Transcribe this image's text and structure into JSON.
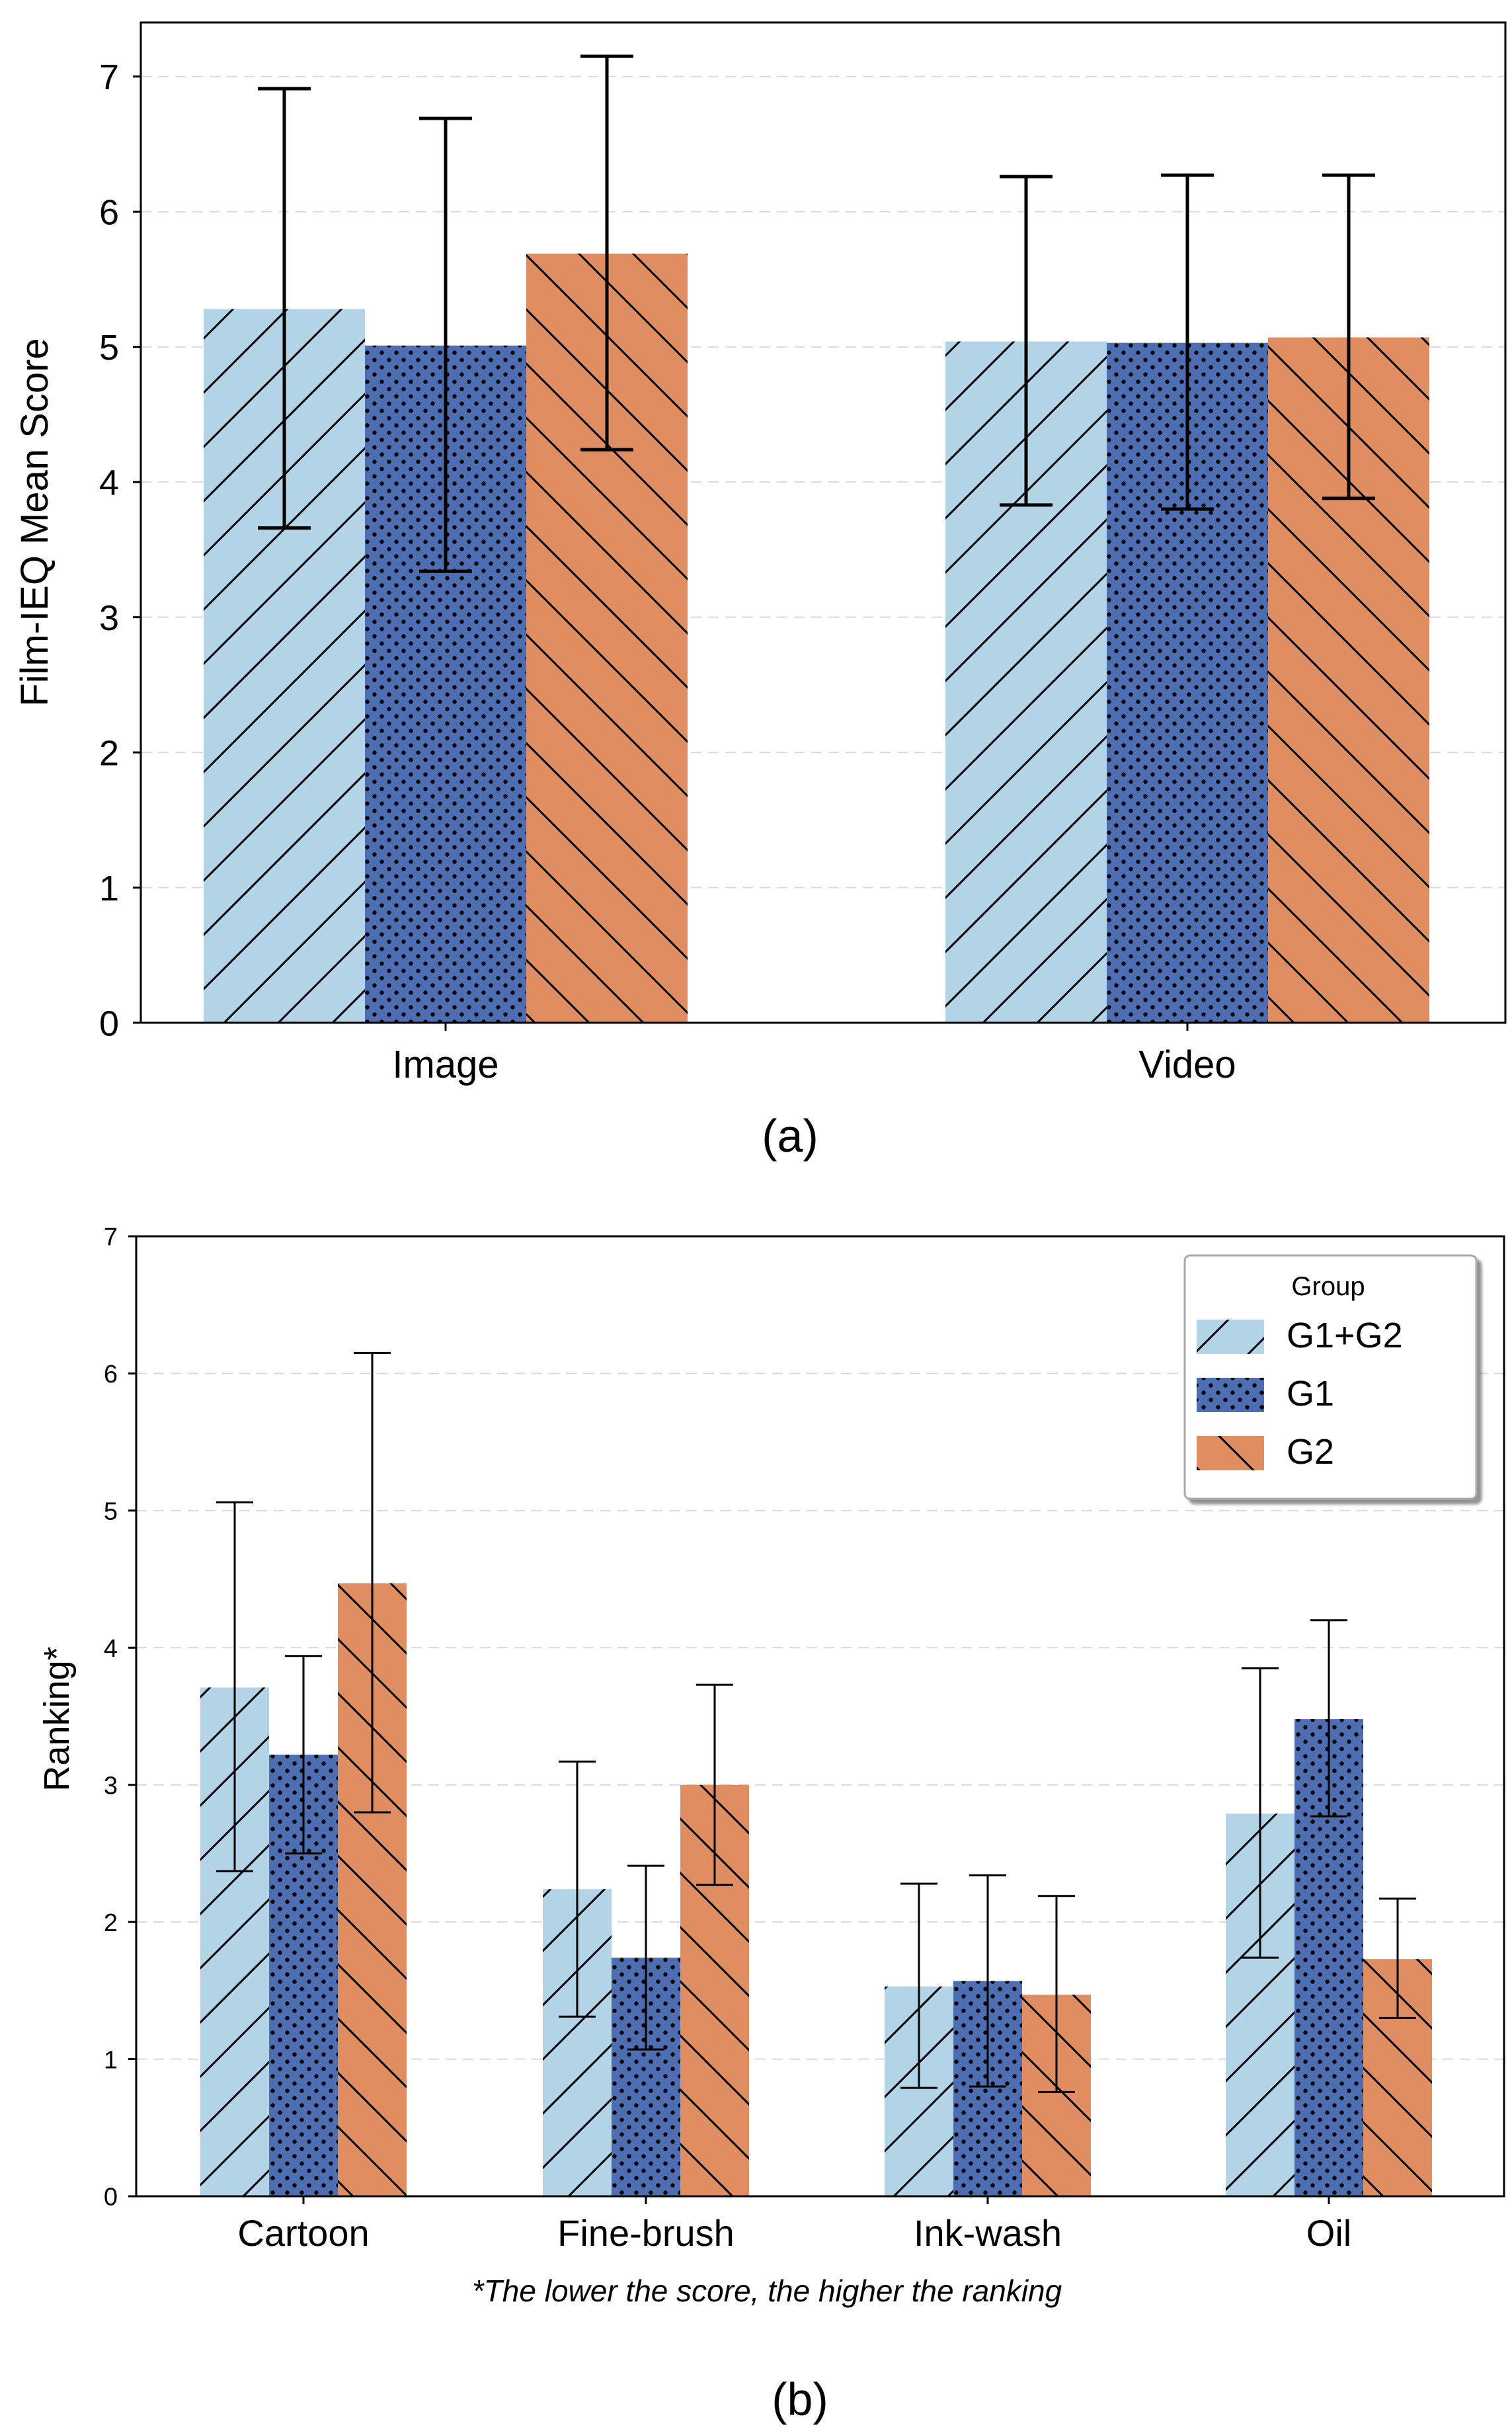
{
  "colors": {
    "g1g2": "#b3d3e6",
    "g1": "#4e6eb3",
    "g2": "#e08d61",
    "grid": "#d9d9d9",
    "axis": "#000000"
  },
  "chart_data": [
    {
      "id": "a",
      "type": "bar",
      "caption": "(a)",
      "title": "",
      "xlabel": "",
      "ylabel": "Film-IEQ Mean Score",
      "ylim": [
        0,
        7.4
      ],
      "yticks": [
        0,
        1,
        2,
        3,
        4,
        5,
        6,
        7
      ],
      "grid": true,
      "categories": [
        "Image",
        "Video"
      ],
      "series": [
        {
          "name": "G1+G2",
          "pattern": "diag-up",
          "values": [
            5.28,
            5.04
          ],
          "err_low": [
            3.66,
            3.83
          ],
          "err_high": [
            6.91,
            6.26
          ]
        },
        {
          "name": "G1",
          "pattern": "dots",
          "values": [
            5.01,
            5.03
          ],
          "err_low": [
            3.34,
            3.8
          ],
          "err_high": [
            6.69,
            6.27
          ]
        },
        {
          "name": "G2",
          "pattern": "diag-down",
          "values": [
            5.69,
            5.07
          ],
          "err_low": [
            4.24,
            3.88
          ],
          "err_high": [
            7.15,
            6.27
          ]
        }
      ]
    },
    {
      "id": "b",
      "type": "bar",
      "caption": "(b)",
      "title": "",
      "xlabel": "",
      "ylabel": "Ranking*",
      "footnote": "*The lower the score, the higher the ranking",
      "ylim": [
        0,
        7
      ],
      "yticks": [
        0,
        1,
        2,
        3,
        4,
        5,
        6,
        7
      ],
      "grid": true,
      "legend": {
        "title": "Group",
        "placement": "top-right"
      },
      "categories": [
        "Cartoon",
        "Fine-brush",
        "Ink-wash",
        "Oil"
      ],
      "series": [
        {
          "name": "G1+G2",
          "pattern": "diag-up",
          "values": [
            3.71,
            2.24,
            1.53,
            2.79
          ],
          "err_low": [
            2.37,
            1.31,
            0.79,
            1.74
          ],
          "err_high": [
            5.06,
            3.17,
            2.28,
            3.85
          ]
        },
        {
          "name": "G1",
          "pattern": "dots",
          "values": [
            3.22,
            1.74,
            1.57,
            3.48
          ],
          "err_low": [
            2.5,
            1.07,
            0.8,
            2.77
          ],
          "err_high": [
            3.94,
            2.41,
            2.34,
            4.2
          ]
        },
        {
          "name": "G2",
          "pattern": "diag-down",
          "values": [
            4.47,
            3.0,
            1.47,
            1.73
          ],
          "err_low": [
            2.8,
            2.27,
            0.76,
            1.3
          ],
          "err_high": [
            6.15,
            3.73,
            2.19,
            2.17
          ]
        }
      ]
    }
  ]
}
